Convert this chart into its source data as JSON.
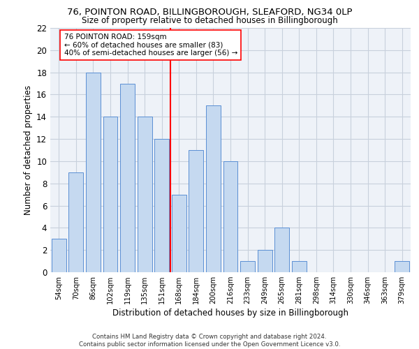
{
  "title1": "76, POINTON ROAD, BILLINGBOROUGH, SLEAFORD, NG34 0LP",
  "title2": "Size of property relative to detached houses in Billingborough",
  "xlabel": "Distribution of detached houses by size in Billingborough",
  "ylabel": "Number of detached properties",
  "categories": [
    "54sqm",
    "70sqm",
    "86sqm",
    "102sqm",
    "119sqm",
    "135sqm",
    "151sqm",
    "168sqm",
    "184sqm",
    "200sqm",
    "216sqm",
    "233sqm",
    "249sqm",
    "265sqm",
    "281sqm",
    "298sqm",
    "314sqm",
    "330sqm",
    "346sqm",
    "363sqm",
    "379sqm"
  ],
  "values": [
    3,
    9,
    18,
    14,
    17,
    14,
    12,
    7,
    11,
    15,
    10,
    1,
    2,
    4,
    1,
    0,
    0,
    0,
    0,
    0,
    1
  ],
  "bar_color": "#c5d9f0",
  "bar_edge_color": "#5b8fd4",
  "property_line_x": 6.5,
  "annotation_text": "76 POINTON ROAD: 159sqm\n← 60% of detached houses are smaller (83)\n40% of semi-detached houses are larger (56) →",
  "footer1": "Contains HM Land Registry data © Crown copyright and database right 2024.",
  "footer2": "Contains public sector information licensed under the Open Government Licence v3.0.",
  "ylim": [
    0,
    22
  ],
  "grid_color": "#c8d0dc",
  "background_color": "#eef2f8"
}
